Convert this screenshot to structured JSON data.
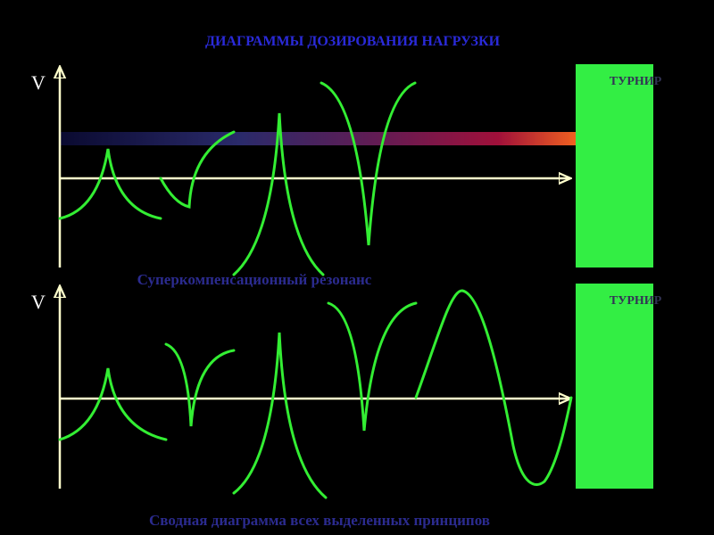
{
  "title": "ДИАГРАММЫ ДОЗИРОВАНИЯ НАГРУЗКИ",
  "panels": [
    {
      "axis_label": "V",
      "box_label": "ТУРНИР",
      "caption": "Суперкомпенсационный резонанс"
    },
    {
      "axis_label": "V",
      "box_label": "ТУРНИР",
      "caption": "Сводная диаграмма всех выделенных принципов"
    }
  ]
}
